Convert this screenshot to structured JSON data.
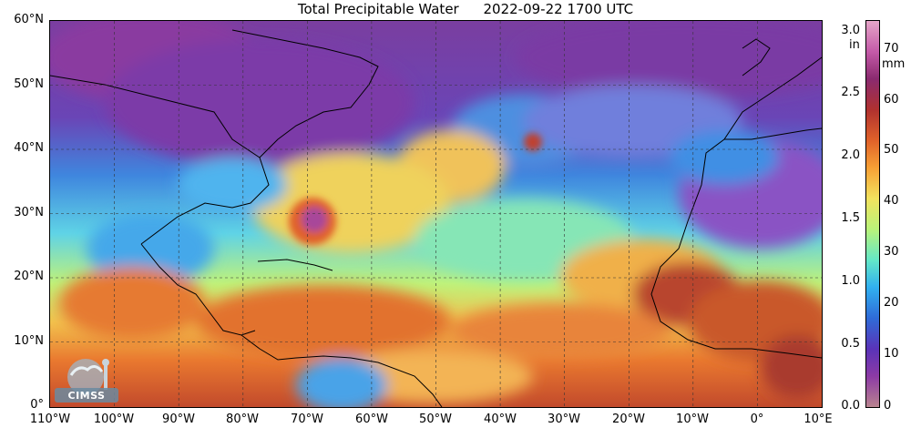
{
  "title": {
    "product": "Total Precipitable Water",
    "timestamp": "2022-09-22 1700 UTC"
  },
  "axes": {
    "lat_labels": [
      "60°N",
      "50°N",
      "40°N",
      "30°N",
      "20°N",
      "10°N",
      "0°"
    ],
    "lon_labels": [
      "110°W",
      "100°W",
      "90°W",
      "80°W",
      "70°W",
      "60°W",
      "50°W",
      "40°W",
      "30°W",
      "20°W",
      "10°W",
      "0°",
      "10°E"
    ]
  },
  "colorbar": {
    "inch_unit": "in",
    "inch_ticks": [
      "3.0",
      "2.5",
      "2.0",
      "1.5",
      "1.0",
      "0.5",
      "0.0"
    ],
    "mm_unit": "mm",
    "mm_ticks": [
      "70",
      "60",
      "50",
      "40",
      "30",
      "20",
      "10",
      "0"
    ],
    "range_mm": [
      0,
      76
    ],
    "colors": [
      "#b9838f",
      "#8c3aa6",
      "#5a33b8",
      "#2f6bd8",
      "#31b0f0",
      "#63e7c8",
      "#b9f37a",
      "#f2e25e",
      "#f7a035",
      "#e0622a",
      "#b0312f",
      "#8a2a6f",
      "#c45aa8",
      "#e6a5c8"
    ]
  },
  "logo": {
    "text": "CIMSS"
  }
}
